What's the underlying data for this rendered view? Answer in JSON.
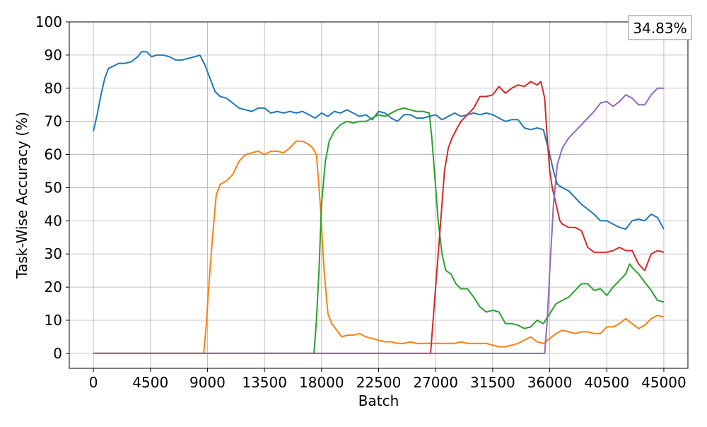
{
  "chart_data": {
    "type": "line",
    "title": "",
    "xlabel": "Batch",
    "ylabel": "Task-Wise Accuracy (%)",
    "xlim": [
      -1900,
      46900
    ],
    "ylim": [
      -4.5,
      100
    ],
    "xticks": [
      0,
      4500,
      9000,
      13500,
      18000,
      22500,
      27000,
      31500,
      36000,
      40500,
      45000
    ],
    "xtick_labels": [
      "0",
      "4500",
      "9000",
      "13500",
      "18000",
      "22500",
      "27000",
      "31500",
      "36000",
      "40500",
      "45000"
    ],
    "yticks": [
      0,
      10,
      20,
      30,
      40,
      50,
      60,
      70,
      80,
      90,
      100
    ],
    "ytick_labels": [
      "0",
      "10",
      "20",
      "30",
      "40",
      "50",
      "60",
      "70",
      "80",
      "90",
      "100"
    ],
    "grid": true,
    "legend": "none",
    "annotation": {
      "text": "34.83%",
      "position": "top-right"
    },
    "series": [
      {
        "color": "#1f77b4",
        "x": [
          0,
          300,
          600,
          900,
          1200,
          1500,
          2000,
          2500,
          3000,
          3500,
          3800,
          4200,
          4600,
          5000,
          5500,
          6000,
          6500,
          7000,
          7500,
          8000,
          8400,
          8800,
          9000,
          9300,
          9600,
          10000,
          10500,
          11000,
          11500,
          12000,
          12500,
          13000,
          13500,
          14000,
          14500,
          15000,
          15500,
          16000,
          16500,
          17000,
          17500,
          18000,
          18500,
          19000,
          19500,
          20000,
          20500,
          21000,
          21500,
          22000,
          22500,
          23000,
          23500,
          24000,
          24500,
          25000,
          25500,
          26000,
          26500,
          27000,
          27500,
          28000,
          28500,
          29000,
          29500,
          30000,
          30500,
          31000,
          31500,
          32000,
          32500,
          33000,
          33500,
          34000,
          34500,
          35000,
          35500,
          36000,
          36300,
          36600,
          37000,
          37500,
          38000,
          38500,
          39000,
          39500,
          40000,
          40500,
          41000,
          41500,
          42000,
          42500,
          43000,
          43500,
          44000,
          44500,
          45000
        ],
        "y": [
          67,
          72,
          78,
          83,
          86,
          86.5,
          87.5,
          87.5,
          88,
          89.5,
          91,
          91,
          89.5,
          90,
          90,
          89.5,
          88.5,
          88.5,
          89,
          89.5,
          90,
          87,
          85,
          82,
          79,
          77.5,
          77,
          75.5,
          74,
          73.5,
          73,
          74,
          74,
          72.5,
          73,
          72.5,
          73,
          72.5,
          73,
          72,
          71,
          72.5,
          71.5,
          73,
          72.5,
          73.5,
          72.5,
          71.5,
          72,
          70.5,
          73,
          72.5,
          71,
          70,
          72,
          72,
          71,
          71,
          71.5,
          72,
          70.5,
          71.5,
          72.5,
          71.5,
          72,
          72.5,
          72,
          72.5,
          72,
          71,
          70,
          70.5,
          70.5,
          68,
          67.5,
          68,
          67.5,
          60,
          55,
          51,
          50,
          49,
          47,
          45,
          43.5,
          42,
          40,
          40,
          39,
          38,
          37.5,
          40,
          40.5,
          40,
          42,
          41,
          37.5
        ]
      },
      {
        "color": "#ff7f0e",
        "x": [
          0,
          8700,
          8900,
          9100,
          9400,
          9700,
          10000,
          10500,
          11000,
          11500,
          12000,
          12500,
          13000,
          13500,
          14000,
          14500,
          15000,
          15500,
          16000,
          16500,
          17000,
          17300,
          17600,
          17900,
          18200,
          18500,
          18800,
          19200,
          19600,
          20000,
          20500,
          21000,
          21500,
          22000,
          22500,
          23000,
          23500,
          24000,
          24500,
          25000,
          25500,
          26000,
          26500,
          27000,
          27500,
          28000,
          28500,
          29000,
          29500,
          30000,
          30500,
          31000,
          31500,
          32000,
          32500,
          33000,
          33500,
          34000,
          34500,
          35000,
          35500,
          36000,
          36500,
          37000,
          37500,
          38000,
          38500,
          39000,
          39500,
          40000,
          40500,
          41000,
          41500,
          42000,
          42500,
          43000,
          43500,
          44000,
          44500,
          45000
        ],
        "y": [
          0,
          0,
          8,
          20,
          35,
          48,
          51,
          52,
          54,
          58,
          60,
          60.5,
          61,
          60,
          61,
          61,
          60.5,
          62,
          64,
          64,
          63,
          62,
          60,
          45,
          25,
          12,
          9,
          7,
          5,
          5.5,
          5.5,
          6,
          5,
          4.5,
          4,
          3.5,
          3.5,
          3,
          3,
          3.5,
          3,
          3,
          3,
          3,
          3,
          3,
          3,
          3.5,
          3,
          3,
          3,
          3,
          2.5,
          2,
          2,
          2.5,
          3,
          4,
          5,
          3.5,
          3,
          4.5,
          6,
          7,
          6.5,
          6,
          6.5,
          6.5,
          6,
          6,
          8,
          8,
          9,
          10.5,
          9,
          7.5,
          8.5,
          10.5,
          11.5,
          11
        ]
      },
      {
        "color": "#2ca02c",
        "x": [
          0,
          17400,
          17600,
          17800,
          18000,
          18300,
          18600,
          19000,
          19500,
          20000,
          20500,
          21000,
          21500,
          22000,
          22500,
          23000,
          23500,
          24000,
          24500,
          25000,
          25500,
          26000,
          26500,
          26700,
          26900,
          27200,
          27500,
          27800,
          28200,
          28600,
          29000,
          29500,
          30000,
          30500,
          31000,
          31500,
          32000,
          32500,
          33000,
          33500,
          34000,
          34500,
          35000,
          35500,
          36000,
          36500,
          37000,
          37500,
          38000,
          38500,
          39000,
          39500,
          40000,
          40500,
          41000,
          41500,
          42000,
          42300,
          42600,
          43000,
          43500,
          44000,
          44500,
          45000
        ],
        "y": [
          0,
          0,
          10,
          25,
          45,
          58,
          64,
          67,
          69,
          70,
          69.5,
          70,
          70,
          71,
          72,
          71.5,
          72.5,
          73.5,
          74,
          73.5,
          73,
          73,
          72.5,
          65,
          55,
          40,
          30,
          25,
          24,
          21,
          19.5,
          19.5,
          17,
          14,
          12.5,
          13,
          12.5,
          9,
          9,
          8.5,
          7.5,
          8,
          10,
          9,
          12,
          15,
          16,
          17,
          19,
          21,
          21,
          19,
          19.5,
          17.5,
          20,
          22,
          24,
          27,
          25.5,
          24,
          21.5,
          19,
          16,
          15.5
        ]
      },
      {
        "color": "#d62728",
        "x": [
          0,
          26600,
          26800,
          27100,
          27400,
          27700,
          28000,
          28300,
          28700,
          29000,
          29500,
          30000,
          30500,
          31000,
          31500,
          32000,
          32500,
          33000,
          33500,
          34000,
          34500,
          35000,
          35300,
          35600,
          35800,
          36000,
          36200,
          36500,
          36800,
          37000,
          37500,
          38000,
          38500,
          39000,
          39500,
          40000,
          40500,
          41000,
          41500,
          42000,
          42500,
          43000,
          43500,
          44000,
          44500,
          45000
        ],
        "y": [
          0,
          0,
          10,
          25,
          40,
          55,
          62,
          65,
          68,
          70,
          72,
          74,
          77.5,
          77.5,
          78,
          80.5,
          78.5,
          80,
          81,
          80.5,
          82,
          81,
          82,
          77,
          65,
          55,
          50,
          45,
          40,
          39,
          38,
          38,
          37,
          32,
          30.5,
          30.5,
          30.5,
          31,
          32,
          31,
          31,
          27,
          25,
          30,
          31,
          30.5
        ]
      },
      {
        "color": "#9467bd",
        "x": [
          0,
          35600,
          35800,
          36000,
          36300,
          36600,
          37000,
          37500,
          38000,
          38500,
          39000,
          39500,
          40000,
          40500,
          41000,
          41500,
          42000,
          42500,
          43000,
          43500,
          44000,
          44500,
          45000
        ],
        "y": [
          0,
          0,
          10,
          25,
          45,
          57,
          62,
          65,
          67,
          69,
          71,
          73,
          75.5,
          76,
          74.5,
          76,
          78,
          77,
          75,
          75,
          78,
          80,
          80
        ]
      }
    ]
  }
}
